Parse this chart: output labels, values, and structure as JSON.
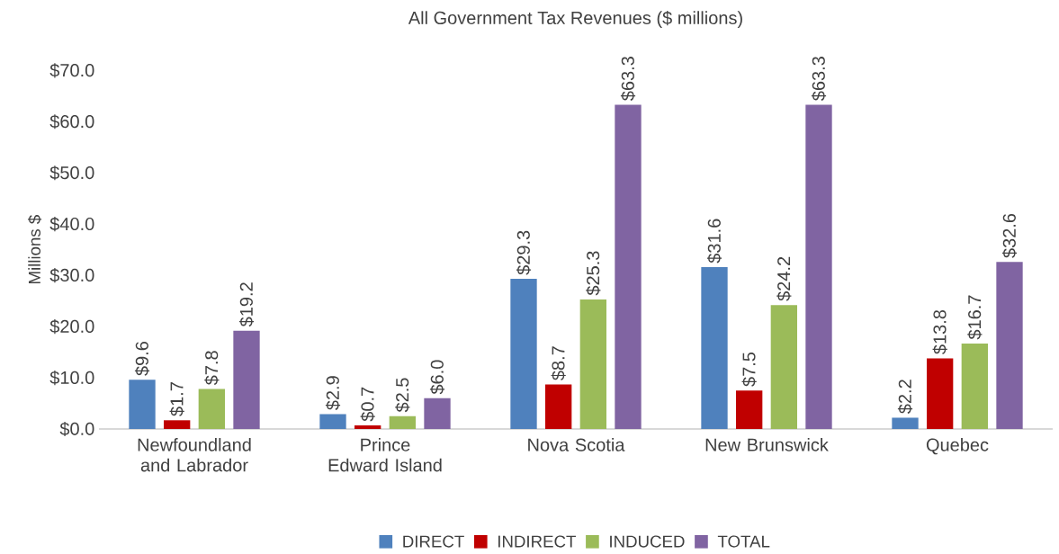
{
  "chart_data": {
    "type": "bar",
    "title": "All Government Tax Revenues ($ millions)",
    "ylabel": "Millions $",
    "categories": [
      "Newfoundland and Labrador",
      "Prince Edward Island",
      "Nova Scotia",
      "New Brunswick",
      "Quebec"
    ],
    "series": [
      {
        "name": "DIRECT",
        "color": "#4f81bd",
        "values": [
          9.6,
          2.9,
          29.3,
          31.6,
          2.2
        ],
        "value_labels": [
          "$9.6",
          "$2.9",
          "$29.3",
          "$31.6",
          "$2.2"
        ]
      },
      {
        "name": "INDIRECT",
        "color": "#c00000",
        "values": [
          1.7,
          0.7,
          8.7,
          7.5,
          13.8
        ],
        "value_labels": [
          "$1.7",
          "$0.7",
          "$8.7",
          "$7.5",
          "$13.8"
        ]
      },
      {
        "name": "INDUCED",
        "color": "#9bbb59",
        "values": [
          7.8,
          2.5,
          25.3,
          24.2,
          16.7
        ],
        "value_labels": [
          "$7.8",
          "$2.5",
          "$25.3",
          "$24.2",
          "$16.7"
        ]
      },
      {
        "name": "TOTAL",
        "color": "#8064a2",
        "values": [
          19.2,
          6.0,
          63.3,
          63.3,
          32.6
        ],
        "value_labels": [
          "$19.2",
          "$6.0",
          "$63.3",
          "$63.3",
          "$32.6"
        ]
      }
    ],
    "ylim": [
      0,
      70
    ],
    "yticks": [
      {
        "value": 0,
        "label": "$0.0"
      },
      {
        "value": 10,
        "label": "$10.0"
      },
      {
        "value": 20,
        "label": "$20.0"
      },
      {
        "value": 30,
        "label": "$30.0"
      },
      {
        "value": 40,
        "label": "$40.0"
      },
      {
        "value": 50,
        "label": "$50.0"
      },
      {
        "value": 60,
        "label": "$60.0"
      },
      {
        "value": 70,
        "label": "$70.0"
      }
    ],
    "grid": false,
    "legend": "bottom"
  }
}
